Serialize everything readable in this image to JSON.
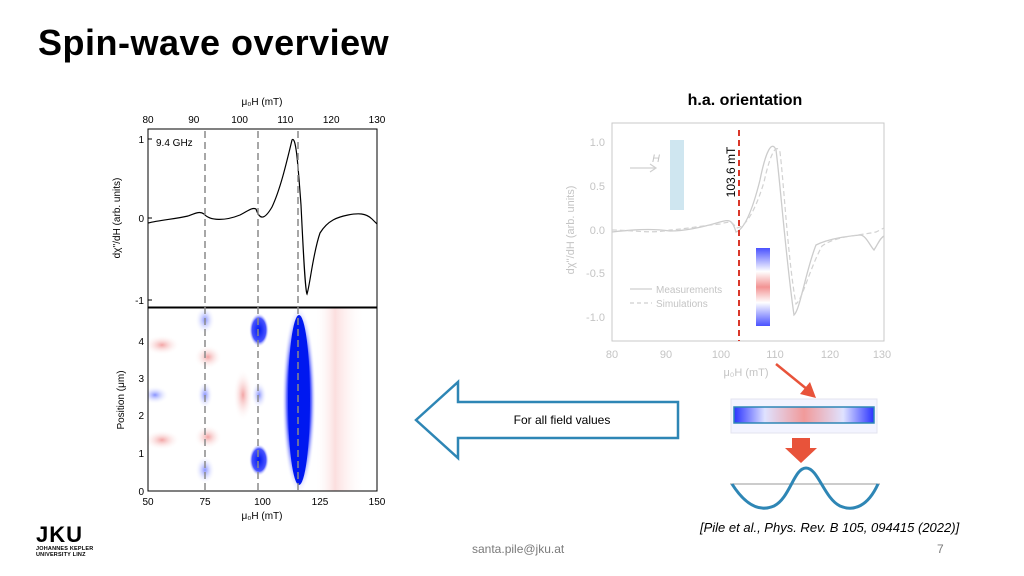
{
  "slide": {
    "title": "Spin-wave overview",
    "right_heading": "h.a. orientation",
    "footer_email": "santa.pile@jku.at",
    "page_number": "7",
    "citation": "[Pile et al., Phys. Rev. B 105, 094415 (2022)]",
    "logo": {
      "text": "JKU",
      "line1": "JOHANNES KEPLER",
      "line2": "UNIVERSITY LINZ"
    }
  },
  "arrow": {
    "label": "For all field values",
    "color": "#2e86b5"
  },
  "left_plot": {
    "top_axis_label": "μ₀H (mT)",
    "top_ticks": [
      "80",
      "90",
      "100",
      "110",
      "120",
      "130"
    ],
    "frequency_label": "9.4 GHz",
    "spectrum_ylabel": "dχ''/dH (arb. units)",
    "spectrum_yticks": [
      "1",
      "0",
      "-1"
    ],
    "map_ylabel": "Position (μm)",
    "map_yticks": [
      "0",
      "1",
      "2",
      "3",
      "4"
    ],
    "bottom_axis_label": "μ₀H (mT)",
    "bottom_ticks": [
      "50",
      "75",
      "100",
      "125",
      "150"
    ]
  },
  "right_plot": {
    "ylabel": "dχ''/dH (arb. units)",
    "xlabel": "μ₀H (mT)",
    "xticks": [
      "80",
      "90",
      "100",
      "110",
      "120",
      "130"
    ],
    "yticks": [
      "1.0",
      "0.5",
      "0.0",
      "-0.5",
      "-1.0"
    ],
    "marker_label": "103.6 mT",
    "legend_measurements": "Measurements",
    "legend_simulations": "Simulations",
    "field_symbol": "H",
    "marker_color": "#d9372a"
  },
  "colors": {
    "accent_blue": "#2e86b5",
    "arrow_red": "#e8533a",
    "map_blue": "#0018f0",
    "map_red": "#f4b8b8"
  }
}
